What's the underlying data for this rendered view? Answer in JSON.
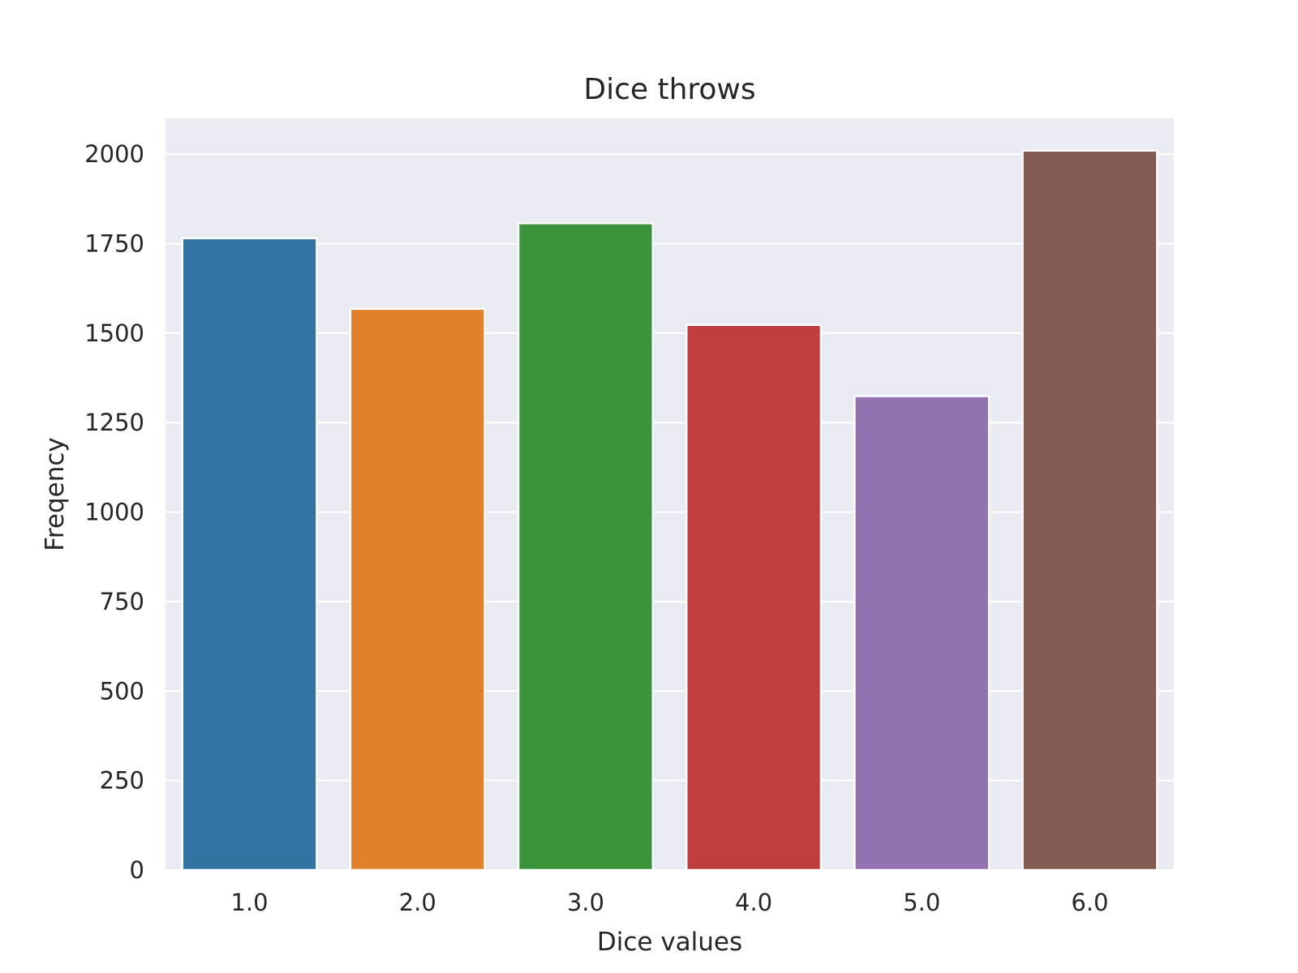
{
  "chart_data": {
    "type": "bar",
    "title": "Dice throws",
    "xlabel": "Dice values",
    "ylabel": "Freqency",
    "categories": [
      "1.0",
      "2.0",
      "3.0",
      "4.0",
      "5.0",
      "6.0"
    ],
    "values": [
      1765,
      1568,
      1807,
      1523,
      1324,
      2010
    ],
    "colors": [
      "#3274a1",
      "#e1812c",
      "#3a923a",
      "#c03d3e",
      "#9372b2",
      "#845b53"
    ],
    "ylim": [
      0,
      2100
    ],
    "yticks": [
      0,
      250,
      500,
      750,
      1000,
      1250,
      1500,
      1750,
      2000
    ],
    "grid": true,
    "background": "#eaeaf2",
    "grid_color": "#ffffff"
  }
}
